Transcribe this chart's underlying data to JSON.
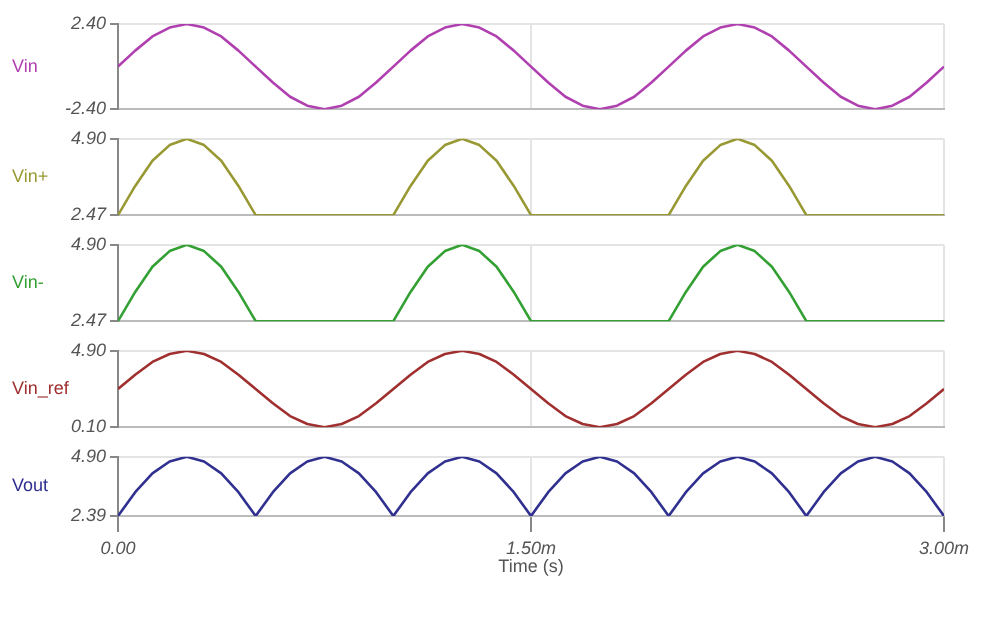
{
  "chart_data": [
    {
      "type": "line",
      "ylabel": "Vin",
      "tick_labels": "y",
      "grid": true,
      "xlim": [
        0,
        3
      ],
      "xticks": [
        0,
        1.5,
        3
      ],
      "ylim": [
        -2.4,
        2.4
      ],
      "yticks": [
        {
          "value": -2.4,
          "label": "-2.40"
        },
        {
          "value": 2.4,
          "label": "2.40"
        }
      ],
      "x": [
        0,
        0.0625,
        0.125,
        0.1875,
        0.25,
        0.3125,
        0.375,
        0.4375,
        0.5,
        0.5625,
        0.625,
        0.6875,
        0.75,
        0.8125,
        0.875,
        0.9375,
        1,
        1.0625,
        1.125,
        1.1875,
        1.25,
        1.3125,
        1.375,
        1.4375,
        1.5,
        1.5625,
        1.625,
        1.6875,
        1.75,
        1.8125,
        1.875,
        1.9375,
        2,
        2.0625,
        2.125,
        2.1875,
        2.25,
        2.3125,
        2.375,
        2.4375,
        2.5,
        2.5625,
        2.625,
        2.6875,
        2.75,
        2.8125,
        2.875,
        2.9375,
        3
      ],
      "series": [
        {
          "color": "#b040b0",
          "values": [
            0,
            0.9,
            1.7,
            2.2,
            2.4,
            2.2,
            1.7,
            0.9,
            0,
            -0.9,
            -1.7,
            -2.2,
            -2.4,
            -2.2,
            -1.7,
            -0.9,
            0,
            0.9,
            1.7,
            2.2,
            2.4,
            2.2,
            1.7,
            0.9,
            0,
            -0.9,
            -1.7,
            -2.2,
            -2.4,
            -2.2,
            -1.7,
            -0.9,
            0,
            0.9,
            1.7,
            2.2,
            2.4,
            2.2,
            1.7,
            0.9,
            0,
            -0.9,
            -1.7,
            -2.2,
            -2.4,
            -2.2,
            -1.7,
            -0.9,
            0
          ]
        }
      ]
    },
    {
      "type": "line",
      "ylabel": "Vin+",
      "tick_labels": "y",
      "grid": true,
      "xlim": [
        0,
        3
      ],
      "xticks": [
        0,
        1.5,
        3
      ],
      "ylim": [
        2.47,
        4.9
      ],
      "yticks": [
        {
          "value": 2.47,
          "label": "2.47"
        },
        {
          "value": 4.9,
          "label": "4.90"
        }
      ],
      "x": [
        0,
        0.0625,
        0.125,
        0.1875,
        0.25,
        0.3125,
        0.375,
        0.4375,
        0.5,
        0.5625,
        0.625,
        0.6875,
        0.75,
        0.8125,
        0.875,
        0.9375,
        1,
        1.0625,
        1.125,
        1.1875,
        1.25,
        1.3125,
        1.375,
        1.4375,
        1.5,
        1.5625,
        1.625,
        1.6875,
        1.75,
        1.8125,
        1.875,
        1.9375,
        2,
        2.0625,
        2.125,
        2.1875,
        2.25,
        2.3125,
        2.375,
        2.4375,
        2.5,
        2.5625,
        2.625,
        2.6875,
        2.75,
        2.8125,
        2.875,
        2.9375,
        3
      ],
      "series": [
        {
          "color": "#999933",
          "values": [
            2.47,
            3.4,
            4.2,
            4.7,
            4.9,
            4.7,
            4.2,
            3.4,
            2.47,
            2.47,
            2.47,
            2.47,
            2.47,
            2.47,
            2.47,
            2.47,
            2.47,
            3.4,
            4.2,
            4.7,
            4.9,
            4.7,
            4.2,
            3.4,
            2.47,
            2.47,
            2.47,
            2.47,
            2.47,
            2.47,
            2.47,
            2.47,
            2.47,
            3.4,
            4.2,
            4.7,
            4.9,
            4.7,
            4.2,
            3.4,
            2.47,
            2.47,
            2.47,
            2.47,
            2.47,
            2.47,
            2.47,
            2.47,
            2.47
          ]
        }
      ]
    },
    {
      "type": "line",
      "ylabel": "Vin-",
      "tick_labels": "y",
      "grid": true,
      "xlim": [
        0,
        3
      ],
      "xticks": [
        0,
        1.5,
        3
      ],
      "ylim": [
        2.47,
        4.9
      ],
      "yticks": [
        {
          "value": 2.47,
          "label": "2.47"
        },
        {
          "value": 4.9,
          "label": "4.90"
        }
      ],
      "x": [
        0,
        0.0625,
        0.125,
        0.1875,
        0.25,
        0.3125,
        0.375,
        0.4375,
        0.5,
        0.5625,
        0.625,
        0.6875,
        0.75,
        0.8125,
        0.875,
        0.9375,
        1,
        1.0625,
        1.125,
        1.1875,
        1.25,
        1.3125,
        1.375,
        1.4375,
        1.5,
        1.5625,
        1.625,
        1.6875,
        1.75,
        1.8125,
        1.875,
        1.9375,
        2,
        2.0625,
        2.125,
        2.1875,
        2.25,
        2.3125,
        2.375,
        2.4375,
        2.5,
        2.5625,
        2.625,
        2.6875,
        2.75,
        2.8125,
        2.875,
        2.9375,
        3
      ],
      "series": [
        {
          "color": "#33a033",
          "values": [
            2.47,
            3.4,
            4.2,
            4.7,
            4.9,
            4.7,
            4.2,
            3.4,
            2.47,
            2.47,
            2.47,
            2.47,
            2.47,
            2.47,
            2.47,
            2.47,
            2.47,
            3.4,
            4.2,
            4.7,
            4.9,
            4.7,
            4.2,
            3.4,
            2.47,
            2.47,
            2.47,
            2.47,
            2.47,
            2.47,
            2.47,
            2.47,
            2.47,
            3.4,
            4.2,
            4.7,
            4.9,
            4.7,
            4.2,
            3.4,
            2.47,
            2.47,
            2.47,
            2.47,
            2.47,
            2.47,
            2.47,
            2.47,
            2.47
          ]
        }
      ]
    },
    {
      "type": "line",
      "ylabel": "Vin_ref",
      "tick_labels": "y",
      "grid": true,
      "xlim": [
        0,
        3
      ],
      "xticks": [
        0,
        1.5,
        3
      ],
      "ylim": [
        0.1,
        4.9
      ],
      "yticks": [
        {
          "value": 0.1,
          "label": "0.10"
        },
        {
          "value": 4.9,
          "label": "4.90"
        }
      ],
      "x": [
        0,
        0.0625,
        0.125,
        0.1875,
        0.25,
        0.3125,
        0.375,
        0.4375,
        0.5,
        0.5625,
        0.625,
        0.6875,
        0.75,
        0.8125,
        0.875,
        0.9375,
        1,
        1.0625,
        1.125,
        1.1875,
        1.25,
        1.3125,
        1.375,
        1.4375,
        1.5,
        1.5625,
        1.625,
        1.6875,
        1.75,
        1.8125,
        1.875,
        1.9375,
        2,
        2.0625,
        2.125,
        2.1875,
        2.25,
        2.3125,
        2.375,
        2.4375,
        2.5,
        2.5625,
        2.625,
        2.6875,
        2.75,
        2.8125,
        2.875,
        2.9375,
        3
      ],
      "series": [
        {
          "color": "#a03030",
          "values": [
            2.5,
            3.4,
            4.2,
            4.7,
            4.9,
            4.7,
            4.2,
            3.4,
            2.5,
            1.6,
            0.8,
            0.3,
            0.1,
            0.3,
            0.8,
            1.6,
            2.5,
            3.4,
            4.2,
            4.7,
            4.9,
            4.7,
            4.2,
            3.4,
            2.5,
            1.6,
            0.8,
            0.3,
            0.1,
            0.3,
            0.8,
            1.6,
            2.5,
            3.4,
            4.2,
            4.7,
            4.9,
            4.7,
            4.2,
            3.4,
            2.5,
            1.6,
            0.8,
            0.3,
            0.1,
            0.3,
            0.8,
            1.6,
            2.5
          ]
        }
      ]
    },
    {
      "type": "line",
      "ylabel": "Vout",
      "xlabel": "Time (s)",
      "grid": true,
      "xlim": [
        0,
        3
      ],
      "xticks": [
        {
          "value": 0,
          "label": "0.00"
        },
        {
          "value": 1.5,
          "label": "1.50m"
        },
        {
          "value": 3,
          "label": "3.00m"
        }
      ],
      "ylim": [
        2.39,
        4.9
      ],
      "yticks": [
        {
          "value": 2.39,
          "label": "2.39"
        },
        {
          "value": 4.9,
          "label": "4.90"
        }
      ],
      "x": [
        0,
        0.0625,
        0.125,
        0.1875,
        0.25,
        0.3125,
        0.375,
        0.4375,
        0.5,
        0.5625,
        0.625,
        0.6875,
        0.75,
        0.8125,
        0.875,
        0.9375,
        1,
        1.0625,
        1.125,
        1.1875,
        1.25,
        1.3125,
        1.375,
        1.4375,
        1.5,
        1.5625,
        1.625,
        1.6875,
        1.75,
        1.8125,
        1.875,
        1.9375,
        2,
        2.0625,
        2.125,
        2.1875,
        2.25,
        2.3125,
        2.375,
        2.4375,
        2.5,
        2.5625,
        2.625,
        2.6875,
        2.75,
        2.8125,
        2.875,
        2.9375,
        3
      ],
      "series": [
        {
          "color": "#303090",
          "values": [
            2.39,
            3.4,
            4.2,
            4.7,
            4.9,
            4.7,
            4.2,
            3.4,
            2.39,
            3.4,
            4.2,
            4.7,
            4.9,
            4.7,
            4.2,
            3.4,
            2.39,
            3.4,
            4.2,
            4.7,
            4.9,
            4.7,
            4.2,
            3.4,
            2.39,
            3.4,
            4.2,
            4.7,
            4.9,
            4.7,
            4.2,
            3.4,
            2.39,
            3.4,
            4.2,
            4.7,
            4.9,
            4.7,
            4.2,
            3.4,
            2.39,
            3.4,
            4.2,
            4.7,
            4.9,
            4.7,
            4.2,
            3.4,
            2.39
          ]
        }
      ]
    }
  ]
}
